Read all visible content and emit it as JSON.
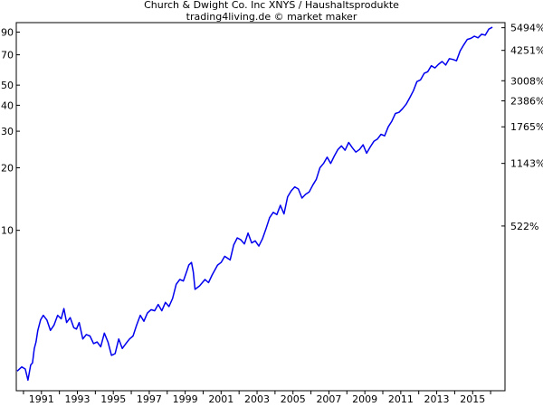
{
  "chart_data": {
    "type": "line",
    "title": "Church & Dwight Co. Inc XNYS / Haushaltsprodukte",
    "subtitle": "trading4living.de © market maker",
    "y_scale": "log",
    "ylim": [
      1.69,
      100
    ],
    "xlim": [
      1989.6,
      2016.8
    ],
    "x_ticks": [
      "1991",
      "1993",
      "1995",
      "1997",
      "1999",
      "2001",
      "2003",
      "2005",
      "2007",
      "2009",
      "2011",
      "2013",
      "2015"
    ],
    "y_ticks_left": [
      {
        "value": 10,
        "label": "10"
      },
      {
        "value": 20,
        "label": "20"
      },
      {
        "value": 30,
        "label": "30"
      },
      {
        "value": 40,
        "label": "40"
      },
      {
        "value": 50,
        "label": "50"
      },
      {
        "value": 70,
        "label": "70"
      },
      {
        "value": 90,
        "label": "90"
      }
    ],
    "y_ticks_right": [
      {
        "value": 10.49,
        "label": "522%"
      },
      {
        "value": 21.0,
        "label": "1143%"
      },
      {
        "value": 31.5,
        "label": "1765%"
      },
      {
        "value": 42.0,
        "label": "2386%"
      },
      {
        "value": 52.5,
        "label": "3008%"
      },
      {
        "value": 73.5,
        "label": "4251%"
      },
      {
        "value": 94.5,
        "label": "5494%"
      }
    ],
    "grid": false,
    "series_color": "#0000ee",
    "series": [
      {
        "x": [
          1989.65,
          1989.9,
          1990.1,
          1990.25,
          1990.4,
          1990.5,
          1990.6,
          1990.7,
          1990.8,
          1990.95,
          1991.1,
          1991.3,
          1991.5,
          1991.7,
          1991.9,
          1992.1,
          1992.25,
          1992.4,
          1992.6,
          1992.8,
          1992.95,
          1993.1,
          1993.3,
          1993.5,
          1993.7,
          1993.9,
          1994.1,
          1994.3,
          1994.5,
          1994.7,
          1994.9,
          1995.1,
          1995.3,
          1995.5,
          1995.7,
          1995.9,
          1996.1,
          1996.3,
          1996.5,
          1996.7,
          1996.9,
          1997.1,
          1997.3,
          1997.5,
          1997.7,
          1997.9,
          1998.1,
          1998.3,
          1998.5,
          1998.7,
          1998.9,
          1999.1,
          1999.2,
          1999.35,
          1999.45,
          1999.55,
          1999.8,
          2000.1,
          2000.3,
          2000.5,
          2000.8,
          2001.0,
          2001.2,
          2001.5,
          2001.7,
          2001.9,
          2002.1,
          2002.3,
          2002.5,
          2002.7,
          2002.9,
          2003.1,
          2003.3,
          2003.5,
          2003.7,
          2003.9,
          2004.1,
          2004.3,
          2004.5,
          2004.7,
          2004.9,
          2005.1,
          2005.3,
          2005.5,
          2005.7,
          2005.9,
          2006.1,
          2006.3,
          2006.5,
          2006.7,
          2006.9,
          2007.1,
          2007.3,
          2007.5,
          2007.7,
          2007.9,
          2008.1,
          2008.3,
          2008.5,
          2008.7,
          2008.9,
          2009.1,
          2009.3,
          2009.5,
          2009.7,
          2009.9,
          2010.1,
          2010.3,
          2010.5,
          2010.7,
          2010.9,
          2011.1,
          2011.3,
          2011.5,
          2011.7,
          2011.9,
          2012.1,
          2012.3,
          2012.5,
          2012.7,
          2012.9,
          2013.1,
          2013.3,
          2013.5,
          2013.7,
          2013.9,
          2014.1,
          2014.3,
          2014.5,
          2014.7,
          2014.9,
          2015.1,
          2015.3,
          2015.5,
          2015.7,
          2015.9,
          2016.1
        ],
        "y": [
          2.1,
          2.2,
          2.15,
          1.9,
          2.25,
          2.3,
          2.7,
          2.9,
          3.3,
          3.7,
          3.9,
          3.7,
          3.3,
          3.5,
          3.9,
          3.75,
          4.2,
          3.6,
          3.8,
          3.4,
          3.35,
          3.6,
          3.0,
          3.15,
          3.1,
          2.85,
          2.9,
          2.75,
          3.2,
          2.9,
          2.5,
          2.55,
          3.0,
          2.7,
          2.85,
          3.0,
          3.1,
          3.5,
          3.9,
          3.65,
          4.0,
          4.15,
          4.1,
          4.4,
          4.1,
          4.5,
          4.3,
          4.7,
          5.5,
          5.8,
          5.7,
          6.4,
          6.8,
          7.0,
          6.3,
          5.2,
          5.4,
          5.8,
          5.6,
          6.1,
          6.8,
          7.0,
          7.5,
          7.2,
          8.5,
          9.2,
          9.0,
          8.6,
          9.7,
          8.7,
          8.9,
          8.4,
          9.1,
          10.2,
          11.5,
          12.2,
          11.9,
          13.2,
          12.0,
          14.5,
          15.5,
          16.2,
          15.8,
          14.3,
          14.9,
          15.3,
          16.5,
          17.6,
          20.0,
          21.0,
          22.5,
          21.0,
          22.8,
          24.5,
          25.5,
          24.3,
          26.5,
          25.0,
          23.8,
          24.5,
          25.8,
          23.5,
          25.2,
          26.8,
          27.5,
          29.0,
          28.5,
          31.5,
          33.5,
          36.5,
          37.0,
          38.5,
          40.5,
          43.5,
          47.0,
          52.0,
          53.0,
          57.0,
          58.0,
          62.0,
          60.5,
          63.0,
          65.0,
          62.5,
          67.0,
          66.5,
          65.5,
          73.0,
          78.0,
          83.0,
          84.0,
          86.0,
          84.5,
          88.0,
          87.0,
          93.0,
          95.0
        ]
      }
    ]
  }
}
